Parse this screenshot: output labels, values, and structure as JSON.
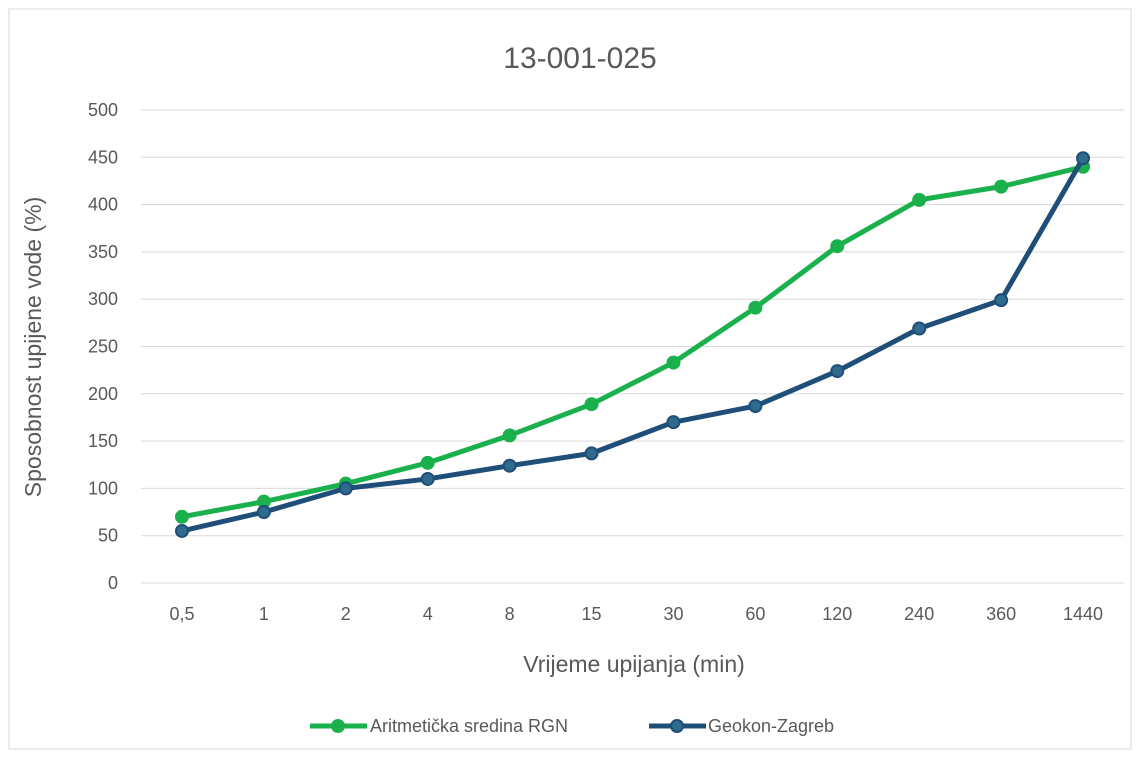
{
  "chart_data": {
    "type": "line",
    "title": "13-001-025",
    "xlabel": "Vrijeme upijanja (min)",
    "ylabel": "Sposobnost upijene vode (%)",
    "categories": [
      "0,5",
      "1",
      "2",
      "4",
      "8",
      "15",
      "30",
      "60",
      "120",
      "240",
      "360",
      "1440"
    ],
    "ylim": [
      0,
      500
    ],
    "yticks": [
      0,
      50,
      100,
      150,
      200,
      250,
      300,
      350,
      400,
      450,
      500
    ],
    "grid": true,
    "legend_position": "bottom",
    "series": [
      {
        "name": "Aritmetička sredina RGN",
        "color": "#1ab04b",
        "values": [
          70,
          86,
          105,
          127,
          156,
          189,
          233,
          291,
          356,
          405,
          419,
          440
        ]
      },
      {
        "name": "Geokon-Zagreb",
        "color": "#1f4e79",
        "marker_fill": "#2e6b8c",
        "values": [
          55,
          75,
          100,
          110,
          124,
          137,
          170,
          187,
          224,
          269,
          299,
          449
        ]
      }
    ]
  }
}
